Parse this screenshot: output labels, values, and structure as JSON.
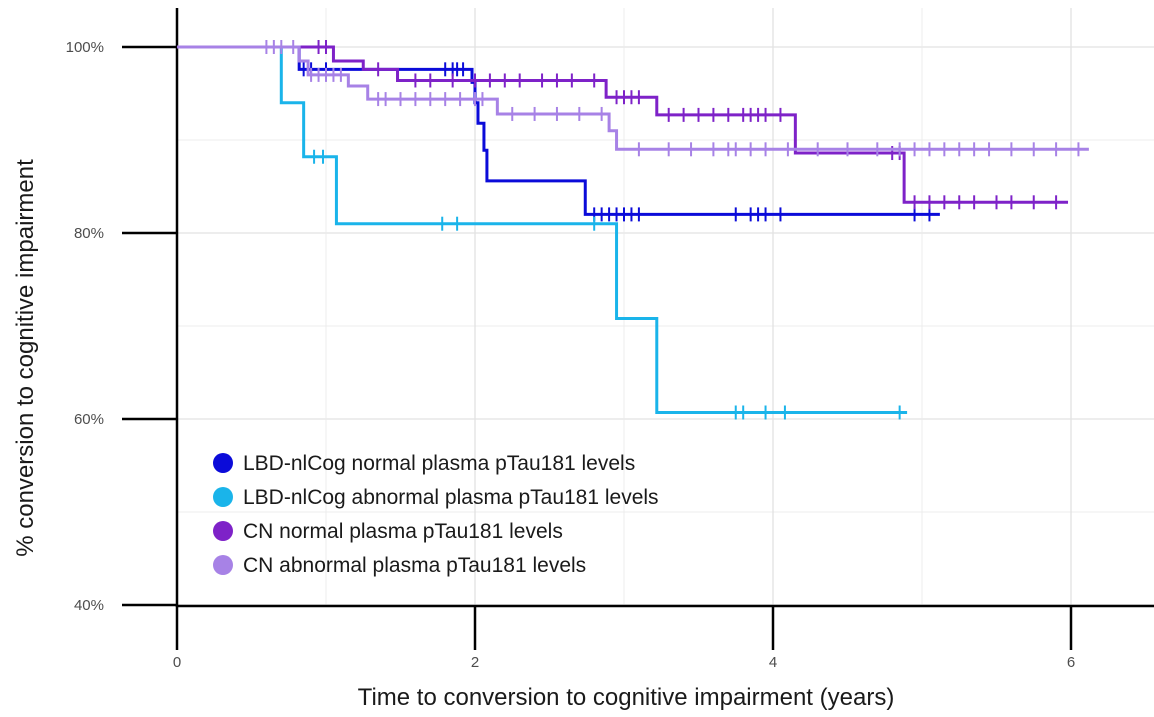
{
  "chart_data": {
    "type": "line",
    "subtype": "kaplan-meier",
    "title": "",
    "xlabel": "Time to conversion to cognitive impairment (years)",
    "ylabel": "% conversion to cognitive impairment",
    "xlim": [
      0,
      6.5
    ],
    "ylim": [
      0.4,
      1.01
    ],
    "x_ticks": [
      0,
      2,
      4,
      6
    ],
    "x_tick_labels": [
      "0",
      "2",
      "4",
      "6"
    ],
    "y_ticks": [
      0.4,
      0.6,
      0.8,
      1.0
    ],
    "y_tick_labels": [
      "40%",
      "60%",
      "80%",
      "100%"
    ],
    "grid": true,
    "legend_position": "bottom-left",
    "series": [
      {
        "name": "LBD-nlCog normal plasma pTau181 levels",
        "color": "#0b0bd9",
        "steps": [
          [
            0,
            1.0
          ],
          [
            0.82,
            0.976
          ],
          [
            1.98,
            0.962
          ],
          [
            2.0,
            0.94
          ],
          [
            2.02,
            0.918
          ],
          [
            2.06,
            0.889
          ],
          [
            2.08,
            0.856
          ],
          [
            2.74,
            0.82
          ],
          [
            5.12,
            0.82
          ]
        ],
        "censored": [
          [
            0.85,
            0.976
          ],
          [
            0.9,
            0.976
          ],
          [
            1.0,
            0.976
          ],
          [
            1.8,
            0.976
          ],
          [
            1.85,
            0.976
          ],
          [
            1.88,
            0.976
          ],
          [
            1.92,
            0.976
          ],
          [
            2.8,
            0.82
          ],
          [
            2.85,
            0.82
          ],
          [
            2.9,
            0.82
          ],
          [
            2.95,
            0.82
          ],
          [
            3.0,
            0.82
          ],
          [
            3.05,
            0.82
          ],
          [
            3.1,
            0.82
          ],
          [
            3.75,
            0.82
          ],
          [
            3.85,
            0.82
          ],
          [
            3.9,
            0.82
          ],
          [
            3.95,
            0.82
          ],
          [
            4.05,
            0.82
          ],
          [
            4.95,
            0.82
          ],
          [
            5.05,
            0.82
          ]
        ]
      },
      {
        "name": "LBD-nlCog abnormal plasma pTau181 levels",
        "color": "#1ab4ea",
        "steps": [
          [
            0,
            1.0
          ],
          [
            0.7,
            0.94
          ],
          [
            0.85,
            0.882
          ],
          [
            1.07,
            0.81
          ],
          [
            2.95,
            0.708
          ],
          [
            3.22,
            0.607
          ],
          [
            4.9,
            0.607
          ]
        ],
        "censored": [
          [
            0.92,
            0.882
          ],
          [
            0.98,
            0.882
          ],
          [
            1.78,
            0.81
          ],
          [
            1.88,
            0.81
          ],
          [
            2.8,
            0.81
          ],
          [
            3.75,
            0.607
          ],
          [
            3.8,
            0.607
          ],
          [
            3.95,
            0.607
          ],
          [
            4.08,
            0.607
          ],
          [
            4.85,
            0.607
          ]
        ]
      },
      {
        "name": "CN normal plasma pTau181 levels",
        "color": "#7e22c8",
        "steps": [
          [
            0,
            1.0
          ],
          [
            1.05,
            0.985
          ],
          [
            1.25,
            0.976
          ],
          [
            1.48,
            0.964
          ],
          [
            2.88,
            0.946
          ],
          [
            3.22,
            0.927
          ],
          [
            4.15,
            0.886
          ],
          [
            4.88,
            0.833
          ],
          [
            5.98,
            0.833
          ]
        ],
        "censored": [
          [
            0.95,
            1.0
          ],
          [
            1.0,
            1.0
          ],
          [
            1.35,
            0.976
          ],
          [
            1.6,
            0.964
          ],
          [
            1.7,
            0.964
          ],
          [
            1.85,
            0.964
          ],
          [
            2.0,
            0.964
          ],
          [
            2.1,
            0.964
          ],
          [
            2.2,
            0.964
          ],
          [
            2.3,
            0.964
          ],
          [
            2.45,
            0.964
          ],
          [
            2.55,
            0.964
          ],
          [
            2.65,
            0.964
          ],
          [
            2.8,
            0.964
          ],
          [
            2.95,
            0.946
          ],
          [
            3.0,
            0.946
          ],
          [
            3.05,
            0.946
          ],
          [
            3.1,
            0.946
          ],
          [
            3.3,
            0.927
          ],
          [
            3.4,
            0.927
          ],
          [
            3.5,
            0.927
          ],
          [
            3.6,
            0.927
          ],
          [
            3.7,
            0.927
          ],
          [
            3.8,
            0.927
          ],
          [
            3.85,
            0.927
          ],
          [
            3.9,
            0.927
          ],
          [
            3.95,
            0.927
          ],
          [
            4.05,
            0.927
          ],
          [
            4.8,
            0.886
          ],
          [
            4.85,
            0.886
          ],
          [
            4.95,
            0.833
          ],
          [
            5.05,
            0.833
          ],
          [
            5.15,
            0.833
          ],
          [
            5.25,
            0.833
          ],
          [
            5.35,
            0.833
          ],
          [
            5.5,
            0.833
          ],
          [
            5.6,
            0.833
          ],
          [
            5.75,
            0.833
          ],
          [
            5.9,
            0.833
          ]
        ]
      },
      {
        "name": "CN abnormal plasma pTau181 levels",
        "color": "#a782e6",
        "steps": [
          [
            0,
            1.0
          ],
          [
            0.82,
            0.985
          ],
          [
            0.88,
            0.97
          ],
          [
            1.15,
            0.958
          ],
          [
            1.28,
            0.944
          ],
          [
            2.15,
            0.928
          ],
          [
            2.9,
            0.91
          ],
          [
            2.95,
            0.89
          ],
          [
            6.12,
            0.89
          ]
        ],
        "censored": [
          [
            0.6,
            1.0
          ],
          [
            0.65,
            1.0
          ],
          [
            0.7,
            1.0
          ],
          [
            0.78,
            1.0
          ],
          [
            0.9,
            0.97
          ],
          [
            0.95,
            0.97
          ],
          [
            1.0,
            0.97
          ],
          [
            1.05,
            0.97
          ],
          [
            1.1,
            0.97
          ],
          [
            1.35,
            0.944
          ],
          [
            1.4,
            0.944
          ],
          [
            1.5,
            0.944
          ],
          [
            1.6,
            0.944
          ],
          [
            1.7,
            0.944
          ],
          [
            1.8,
            0.944
          ],
          [
            1.9,
            0.944
          ],
          [
            2.0,
            0.944
          ],
          [
            2.05,
            0.944
          ],
          [
            2.25,
            0.928
          ],
          [
            2.4,
            0.928
          ],
          [
            2.55,
            0.928
          ],
          [
            2.7,
            0.928
          ],
          [
            2.85,
            0.928
          ],
          [
            3.1,
            0.89
          ],
          [
            3.3,
            0.89
          ],
          [
            3.45,
            0.89
          ],
          [
            3.6,
            0.89
          ],
          [
            3.7,
            0.89
          ],
          [
            3.75,
            0.89
          ],
          [
            3.85,
            0.89
          ],
          [
            3.95,
            0.89
          ],
          [
            4.1,
            0.89
          ],
          [
            4.3,
            0.89
          ],
          [
            4.5,
            0.89
          ],
          [
            4.7,
            0.89
          ],
          [
            4.85,
            0.89
          ],
          [
            4.95,
            0.89
          ],
          [
            5.05,
            0.89
          ],
          [
            5.15,
            0.89
          ],
          [
            5.25,
            0.89
          ],
          [
            5.35,
            0.89
          ],
          [
            5.45,
            0.89
          ],
          [
            5.6,
            0.89
          ],
          [
            5.75,
            0.89
          ],
          [
            5.9,
            0.89
          ],
          [
            6.05,
            0.89
          ]
        ]
      }
    ]
  }
}
